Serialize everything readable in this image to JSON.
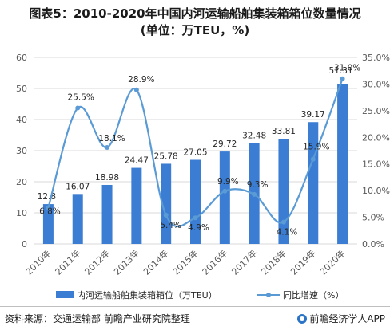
{
  "header": {
    "title": "图表5：2010-2020年中国内河运输船舶集装箱箱位数量情况",
    "subtitle": "(单位：万TEU，%)"
  },
  "chart_data": {
    "type": "bar",
    "categories": [
      "2010年",
      "2011年",
      "2012年",
      "2013年",
      "2014年",
      "2015年",
      "2016年",
      "2017年",
      "2018年",
      "2019年",
      "2020年"
    ],
    "series": [
      {
        "name": "内河运输船舶集装箱箱位（万TEU）",
        "type": "bar",
        "axis": "left",
        "color": "#3a7dd2",
        "values": [
          12.8,
          16.07,
          18.98,
          24.47,
          25.78,
          27.05,
          29.72,
          32.48,
          33.81,
          39.17,
          51.31
        ],
        "labels": [
          "12.8",
          "16.07",
          "18.98",
          "24.47",
          "25.78",
          "27.05",
          "29.72",
          "32.48",
          "33.81",
          "39.17",
          "51.31"
        ]
      },
      {
        "name": "同比增速（%）",
        "type": "line",
        "axis": "right",
        "color": "#5b9bd5",
        "values": [
          6.8,
          25.5,
          18.1,
          28.9,
          5.4,
          4.9,
          9.9,
          9.3,
          4.1,
          15.9,
          31.0
        ],
        "labels": [
          "6.8%",
          "25.5%",
          "18.1%",
          "28.9%",
          "5.4%",
          "4.9%",
          "9.9%",
          "9.3%",
          "4.1%",
          "15.9%",
          "31.0%"
        ]
      }
    ],
    "y_left": {
      "ylim": [
        0,
        60
      ],
      "ticks": [
        "0",
        "10",
        "20",
        "30",
        "40",
        "50",
        "60"
      ]
    },
    "y_right": {
      "ylim": [
        0,
        35
      ],
      "ticks": [
        "0.0%",
        "5.0%",
        "10.0%",
        "15.0%",
        "20.0%",
        "25.0%",
        "30.0%",
        "35.0%"
      ]
    },
    "grid": true,
    "legend_position": "bottom"
  },
  "footer": {
    "source": "资料来源：交通运输部 前瞻产业研究院整理",
    "brand": "前瞻经济学人APP"
  }
}
